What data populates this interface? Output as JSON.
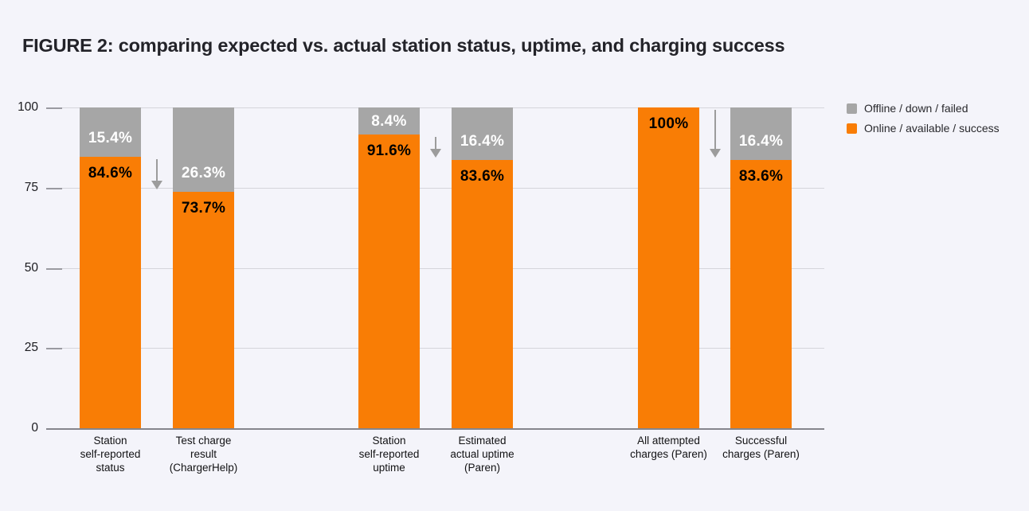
{
  "title": "FIGURE 2: comparing expected vs. actual station status, uptime, and charging success",
  "colors": {
    "background": "#f4f4fa",
    "online": "#f97d05",
    "offline": "#a6a6a6",
    "gridline": "#d5d5db",
    "axis_line": "#85858c",
    "arrow": "#9c9c9c",
    "title_text": "#232329",
    "label_on_offline": "#ffffff",
    "label_on_online": "#000000"
  },
  "legend": {
    "position": "top-right",
    "items": [
      {
        "label": "Offline / down / failed",
        "color": "#a6a6a6"
      },
      {
        "label": "Online / available / success",
        "color": "#f97d05"
      }
    ]
  },
  "y_axis": {
    "min": 0,
    "max": 100,
    "ticks": [
      100,
      75,
      50,
      25,
      0
    ]
  },
  "chart_data": {
    "type": "bar",
    "stacked": true,
    "title": "FIGURE 2: comparing expected vs. actual station status, uptime, and charging success",
    "xlabel": "",
    "ylabel": "",
    "ylim": [
      0,
      100
    ],
    "grid": true,
    "legend_position": "top-right",
    "categories": [
      "Station self-reported status",
      "Test charge result (ChargerHelp)",
      "Station self-reported uptime",
      "Estimated actual uptime (Paren)",
      "All attempted charges (Paren)",
      "Successful charges (Paren)"
    ],
    "categories_lines": [
      [
        "Station",
        "self-reported",
        "status"
      ],
      [
        "Test charge",
        "result",
        "(ChargerHelp)"
      ],
      [
        "Station",
        "self-reported",
        "uptime"
      ],
      [
        "Estimated",
        "actual uptime",
        "(Paren)"
      ],
      [
        "All attempted",
        "charges (Paren)"
      ],
      [
        "Successful",
        "charges (Paren)"
      ]
    ],
    "series": [
      {
        "name": "Online / available / success",
        "color": "#f97d05",
        "values": [
          84.6,
          73.7,
          91.6,
          83.6,
          100,
          83.6
        ],
        "labels": [
          "84.6%",
          "73.7%",
          "91.6%",
          "83.6%",
          "100%",
          "83.6%"
        ]
      },
      {
        "name": "Offline / down / failed",
        "color": "#a6a6a6",
        "values": [
          15.4,
          26.3,
          8.4,
          16.4,
          0,
          16.4
        ],
        "labels": [
          "15.4%",
          "26.3%",
          "8.4%",
          "16.4%",
          "",
          "16.4%"
        ]
      }
    ],
    "groups": [
      [
        0,
        1
      ],
      [
        2,
        3
      ],
      [
        4,
        5
      ]
    ],
    "arrows": [
      {
        "from_bar": 0,
        "to_bar": 1,
        "direction": "down"
      },
      {
        "from_bar": 2,
        "to_bar": 3,
        "direction": "down"
      },
      {
        "from_bar": 4,
        "to_bar": 5,
        "direction": "down"
      }
    ]
  }
}
